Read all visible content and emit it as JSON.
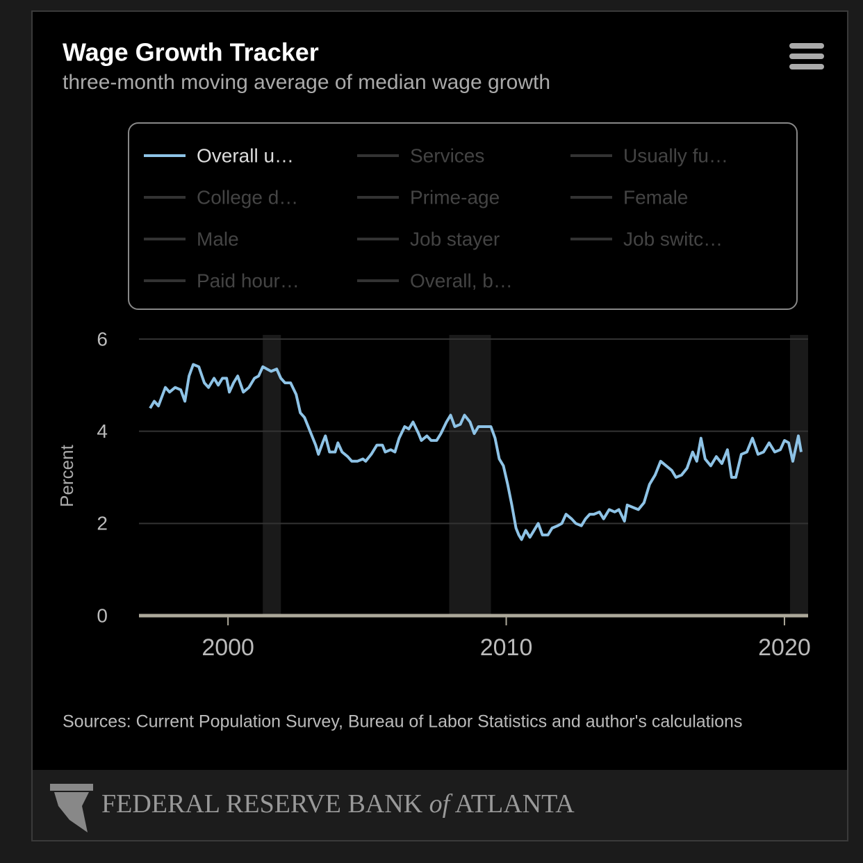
{
  "chart_data": {
    "type": "line",
    "title": "Wage Growth Tracker",
    "subtitle": "three-month moving average of median wage growth",
    "y_label": "Percent",
    "source": "Sources: Current Population Survey, Bureau of Labor Statistics and author's calculations",
    "xlim": [
      1996.8,
      2020.85
    ],
    "xticks": [
      2000,
      2010,
      2020
    ],
    "ylim": [
      0,
      6
    ],
    "yticks": [
      0,
      2,
      4,
      6
    ],
    "grid": true,
    "recessions": [
      [
        2001.25,
        2001.9
      ],
      [
        2007.95,
        2009.45
      ],
      [
        2020.2,
        2020.85
      ]
    ],
    "x": [
      1997.2,
      1997.35,
      1997.5,
      1997.75,
      1997.9,
      1998.1,
      1998.3,
      1998.45,
      1998.6,
      1998.75,
      1998.95,
      1999.15,
      1999.3,
      1999.5,
      1999.65,
      1999.8,
      1999.95,
      2000.05,
      2000.2,
      2000.35,
      2000.55,
      2000.75,
      2000.95,
      2001.1,
      2001.25,
      2001.4,
      2001.55,
      2001.75,
      2001.9,
      2002.05,
      2002.25,
      2002.45,
      2002.6,
      2002.75,
      2002.95,
      2003.15,
      2003.25,
      2003.4,
      2003.5,
      2003.65,
      2003.85,
      2003.95,
      2004.1,
      2004.3,
      2004.45,
      2004.65,
      2004.85,
      2004.95,
      2005.15,
      2005.35,
      2005.55,
      2005.65,
      2005.85,
      2006.0,
      2006.15,
      2006.35,
      2006.5,
      2006.65,
      2006.85,
      2006.95,
      2007.15,
      2007.3,
      2007.5,
      2007.65,
      2007.85,
      2008.0,
      2008.15,
      2008.35,
      2008.5,
      2008.7,
      2008.85,
      2009.0,
      2009.2,
      2009.45,
      2009.6,
      2009.75,
      2009.9,
      2010.05,
      2010.2,
      2010.35,
      2010.45,
      2010.55,
      2010.7,
      2010.85,
      2011.0,
      2011.15,
      2011.3,
      2011.5,
      2011.65,
      2011.85,
      2012.0,
      2012.15,
      2012.35,
      2012.5,
      2012.7,
      2012.85,
      2013.0,
      2013.15,
      2013.35,
      2013.5,
      2013.7,
      2013.9,
      2014.05,
      2014.25,
      2014.35,
      2014.55,
      2014.75,
      2014.95,
      2015.15,
      2015.35,
      2015.55,
      2015.75,
      2015.95,
      2016.1,
      2016.3,
      2016.5,
      2016.7,
      2016.85,
      2017.0,
      2017.15,
      2017.35,
      2017.55,
      2017.75,
      2017.95,
      2018.1,
      2018.25,
      2018.45,
      2018.65,
      2018.85,
      2019.05,
      2019.25,
      2019.45,
      2019.65,
      2019.85,
      2020.0,
      2020.15,
      2020.3,
      2020.5,
      2020.6
    ],
    "series": [
      {
        "name": "Overall u…",
        "color": "#8ec3e6",
        "values": [
          4.5,
          4.65,
          4.55,
          4.95,
          4.85,
          4.95,
          4.9,
          4.65,
          5.2,
          5.45,
          5.4,
          5.05,
          4.95,
          5.15,
          5.0,
          5.15,
          5.15,
          4.85,
          5.05,
          5.2,
          4.85,
          4.95,
          5.15,
          5.2,
          5.4,
          5.35,
          5.3,
          5.35,
          5.15,
          5.05,
          5.05,
          4.8,
          4.4,
          4.3,
          4.0,
          3.7,
          3.5,
          3.75,
          3.9,
          3.55,
          3.55,
          3.75,
          3.55,
          3.45,
          3.35,
          3.35,
          3.4,
          3.35,
          3.5,
          3.7,
          3.7,
          3.55,
          3.6,
          3.55,
          3.85,
          4.1,
          4.05,
          4.2,
          3.95,
          3.8,
          3.9,
          3.8,
          3.8,
          3.95,
          4.2,
          4.35,
          4.1,
          4.15,
          4.35,
          4.2,
          3.95,
          4.1,
          4.1,
          4.1,
          3.85,
          3.4,
          3.25,
          2.85,
          2.4,
          1.9,
          1.75,
          1.65,
          1.85,
          1.7,
          1.85,
          2.0,
          1.75,
          1.75,
          1.9,
          1.95,
          2.0,
          2.2,
          2.1,
          2.0,
          1.95,
          2.1,
          2.2,
          2.2,
          2.25,
          2.1,
          2.3,
          2.25,
          2.3,
          2.05,
          2.4,
          2.35,
          2.3,
          2.45,
          2.85,
          3.05,
          3.35,
          3.25,
          3.15,
          3.0,
          3.05,
          3.2,
          3.55,
          3.35,
          3.85,
          3.4,
          3.25,
          3.45,
          3.3,
          3.6,
          3.0,
          3.0,
          3.5,
          3.55,
          3.85,
          3.5,
          3.55,
          3.75,
          3.55,
          3.6,
          3.8,
          3.75,
          3.35,
          3.9,
          3.55
        ]
      },
      {
        "name": "Services",
        "color": "#333333"
      },
      {
        "name": "Usually fu…",
        "color": "#333333"
      },
      {
        "name": "College d…",
        "color": "#333333"
      },
      {
        "name": "Prime-age",
        "color": "#333333"
      },
      {
        "name": "Female",
        "color": "#333333"
      },
      {
        "name": "Male",
        "color": "#333333"
      },
      {
        "name": "Job stayer",
        "color": "#333333"
      },
      {
        "name": "Job switc…",
        "color": "#333333"
      },
      {
        "name": "Paid hour…",
        "color": "#333333"
      },
      {
        "name": "Overall, b…",
        "color": "#333333"
      }
    ],
    "footer": {
      "left": "FEDERAL RESERVE BANK",
      "of": "of",
      "right": "ATLANTA"
    }
  }
}
